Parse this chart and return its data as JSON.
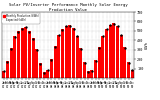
{
  "title": "Solar PV/Inverter Performance Monthly Solar Energy Production Value",
  "title_fontsize": 2.8,
  "ylabel_right": "kWh",
  "ylabel_right_fontsize": 2.5,
  "ylim": [
    0,
    700
  ],
  "yticks": [
    100,
    200,
    300,
    400,
    500,
    600,
    700
  ],
  "ytick_fontsize": 2.5,
  "xtick_fontsize": 2.0,
  "background_color": "#ffffff",
  "grid_color": "#bbbbbb",
  "bar_color": "#ff0000",
  "dot_color": "#000000",
  "months": [
    "Jan\n07",
    "Feb\n07",
    "Mar\n07",
    "Apr\n07",
    "May\n07",
    "Jun\n07",
    "Jul\n07",
    "Aug\n07",
    "Sep\n07",
    "Oct\n07",
    "Nov\n07",
    "Dec\n07",
    "Jan\n08",
    "Feb\n08",
    "Mar\n08",
    "Apr\n08",
    "May\n08",
    "Jun\n08",
    "Jul\n08",
    "Aug\n08",
    "Sep\n08",
    "Oct\n08",
    "Nov\n08",
    "Dec\n08",
    "Jan\n09",
    "Feb\n09",
    "Mar\n09",
    "Apr\n09",
    "May\n09",
    "Jun\n09",
    "Jul\n09",
    "Aug\n09",
    "Sep\n09",
    "Oct\n09",
    "Nov\n09",
    "Dec\n09"
  ],
  "bar_values": [
    75,
    185,
    315,
    445,
    500,
    530,
    545,
    500,
    425,
    305,
    155,
    65,
    90,
    200,
    340,
    460,
    515,
    555,
    560,
    530,
    450,
    320,
    165,
    75,
    85,
    190,
    330,
    450,
    525,
    565,
    585,
    555,
    460,
    330,
    170,
    90
  ],
  "dot_values": [
    70,
    175,
    308,
    438,
    492,
    522,
    538,
    492,
    418,
    298,
    148,
    58,
    83,
    192,
    332,
    452,
    507,
    547,
    552,
    522,
    442,
    312,
    158,
    68,
    78,
    182,
    322,
    442,
    517,
    557,
    577,
    547,
    452,
    322,
    163,
    83
  ],
  "legend_bar": "Monthly Production (kWh)",
  "legend_dot": "Expected (kWh)"
}
